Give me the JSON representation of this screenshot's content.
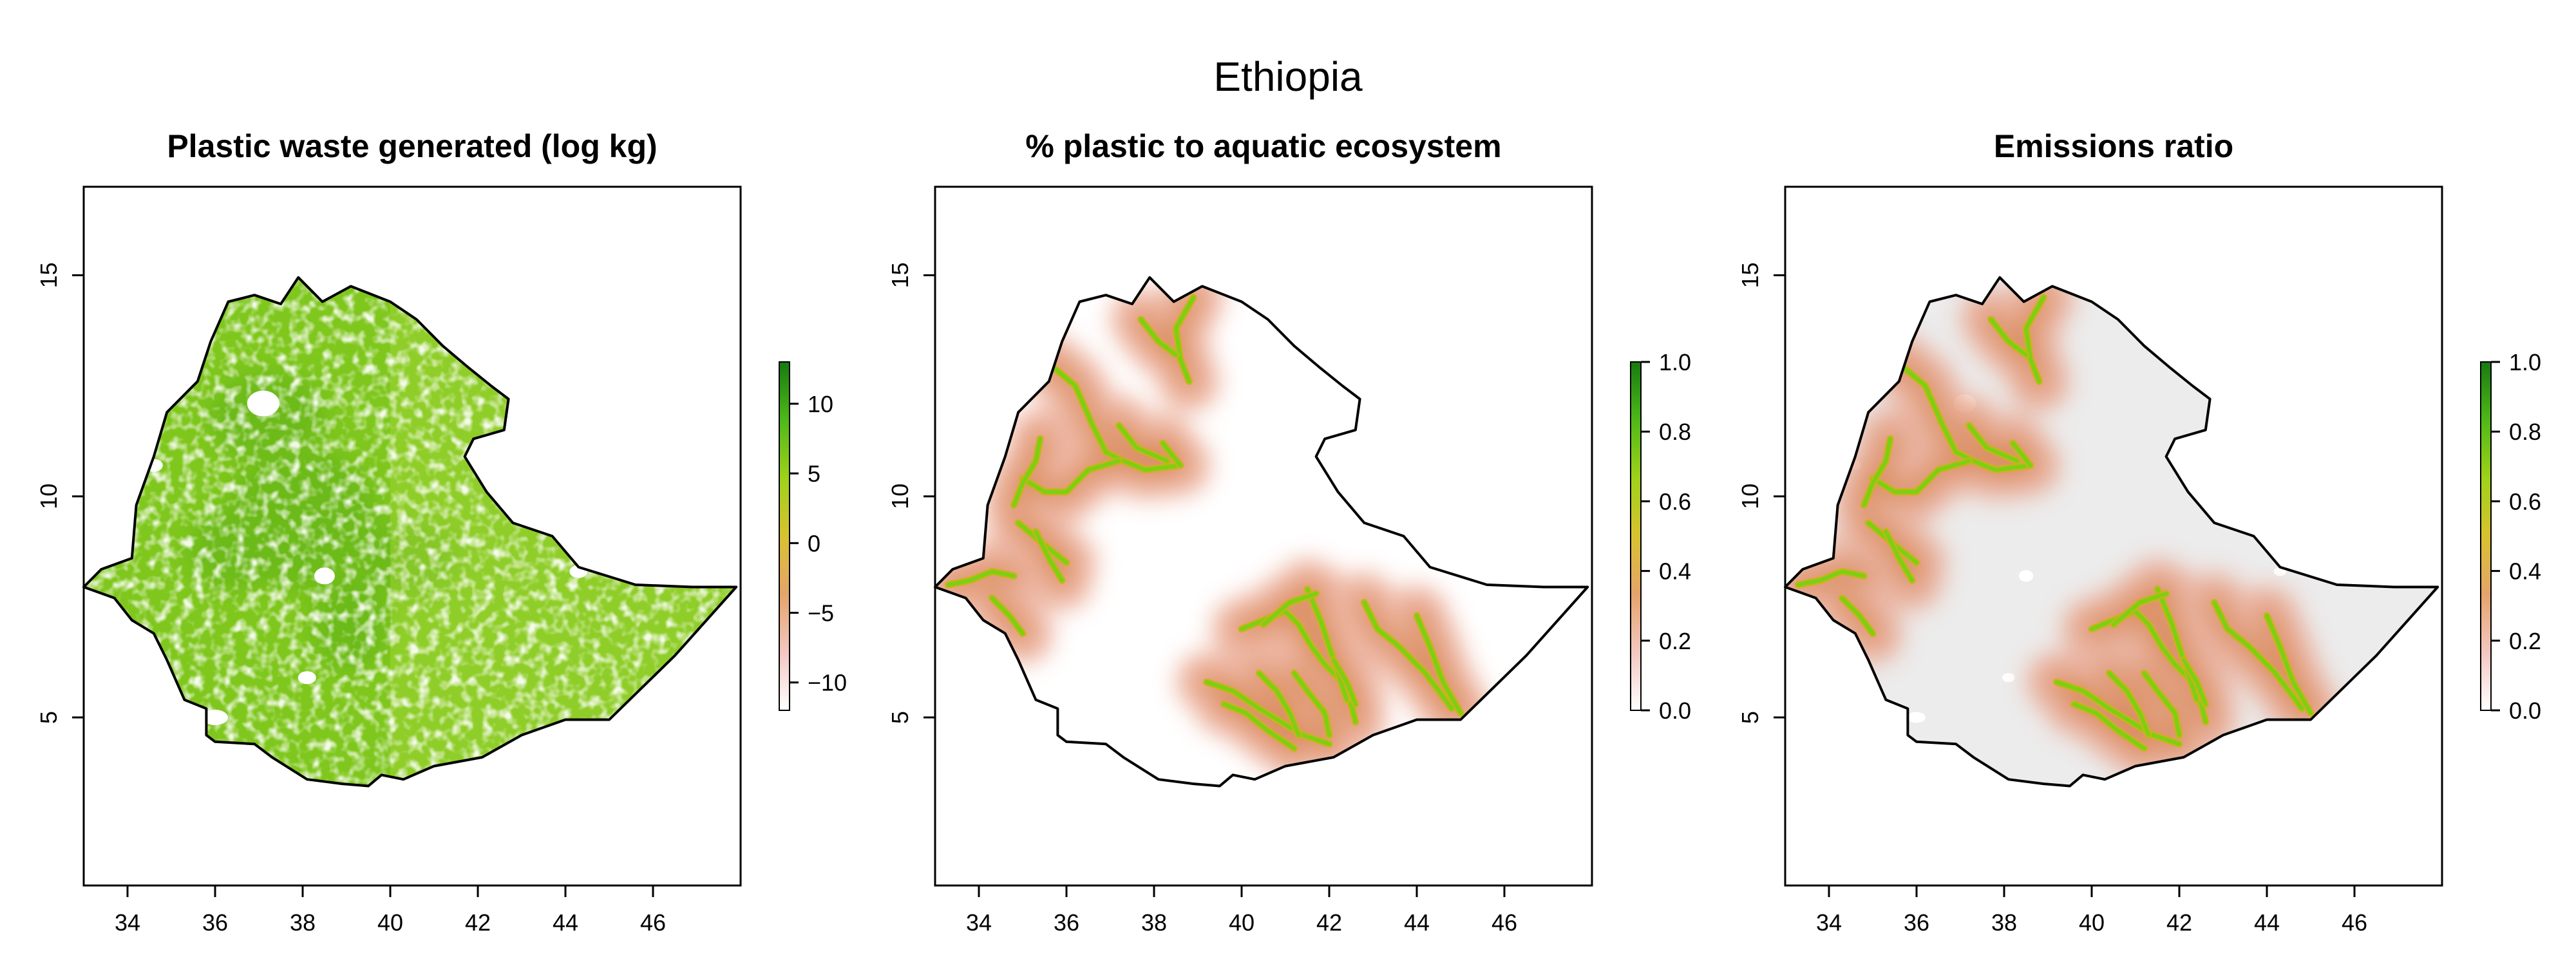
{
  "title": "Ethiopia",
  "panels": [
    {
      "title": "Plastic waste generated (log kg)",
      "xticks": [
        "34",
        "36",
        "38",
        "40",
        "42",
        "44",
        "46"
      ],
      "yticks": [
        "5",
        "10",
        "15"
      ],
      "legend": {
        "ticks": [
          "10",
          "5",
          "0",
          "−5",
          "−10"
        ],
        "range": [
          -12,
          13
        ],
        "colors": [
          "#ffffff",
          "#f3c7c1",
          "#e5a46b",
          "#d8c230",
          "#9fd21a",
          "#4fb818",
          "#187a12"
        ]
      },
      "fill": "land-green"
    },
    {
      "title": "% plastic to aquatic ecosystem",
      "xticks": [
        "34",
        "36",
        "38",
        "40",
        "42",
        "44",
        "46"
      ],
      "yticks": [
        "5",
        "10",
        "15"
      ],
      "legend": {
        "ticks": [
          "1.0",
          "0.8",
          "0.6",
          "0.4",
          "0.2",
          "0.0"
        ],
        "range": [
          0,
          1
        ],
        "colors": [
          "#ffffff",
          "#f3c7c1",
          "#e5a46b",
          "#d8c230",
          "#9fd21a",
          "#4fb818",
          "#187a12"
        ]
      },
      "fill": "white-rivers"
    },
    {
      "title": "Emissions ratio",
      "xticks": [
        "34",
        "36",
        "38",
        "40",
        "42",
        "44",
        "46"
      ],
      "yticks": [
        "5",
        "10",
        "15"
      ],
      "legend": {
        "ticks": [
          "1.0",
          "0.8",
          "0.6",
          "0.4",
          "0.2",
          "0.0"
        ],
        "range": [
          0,
          1
        ],
        "colors": [
          "#ffffff",
          "#f3c7c1",
          "#e5a46b",
          "#d8c230",
          "#9fd21a",
          "#4fb818",
          "#187a12"
        ]
      },
      "fill": "grey-rivers"
    }
  ],
  "map_extent": {
    "lon": [
      33,
      48
    ],
    "lat": [
      1.2,
      17
    ]
  },
  "colors": {
    "land_green": "#7fc71d",
    "land_grey": "#ececec",
    "river_core": "#7ccf14",
    "river_halo": "#e9a48d",
    "border": "#000000"
  }
}
